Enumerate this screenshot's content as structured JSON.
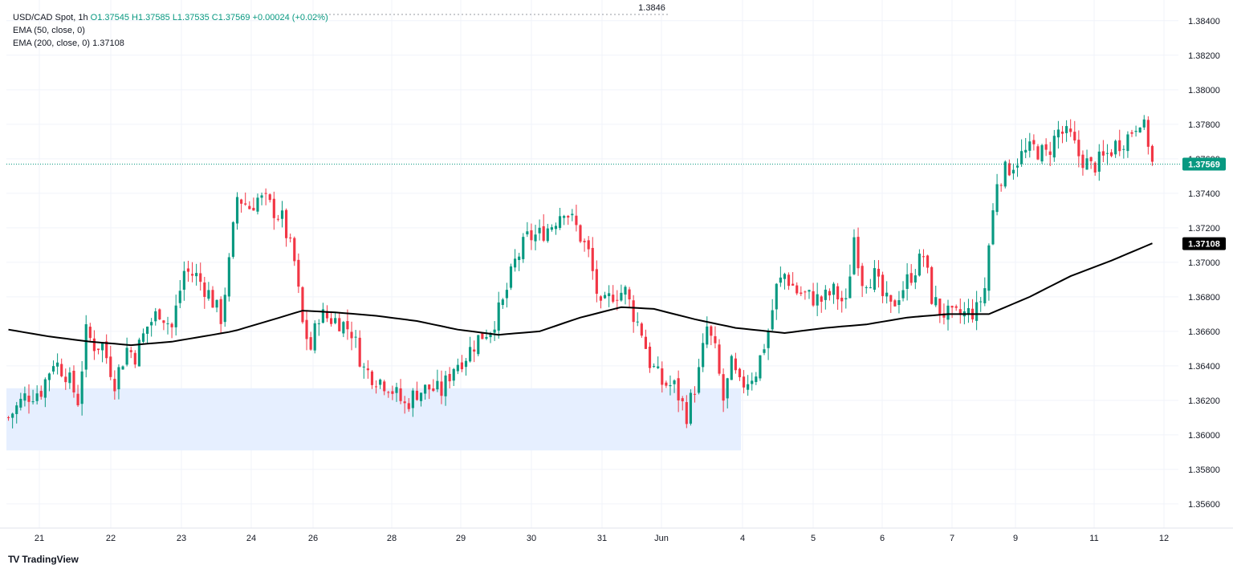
{
  "legend": {
    "symbol": "USD/CAD Spot",
    "interval": "1h",
    "open": "O1.37545",
    "high": "H1.37585",
    "low": "L1.37535",
    "close": "C1.37569",
    "change": "+0.00024 (+0.02%)",
    "ema50": "EMA (50, close, 0)",
    "ema200": "EMA (200, close, 0)",
    "ema200_value": "1.37108"
  },
  "overflow_label": "1.3846",
  "logo_text": "TradingView",
  "colors": {
    "up": "#089981",
    "down": "#f23645",
    "ema": "#000000",
    "zone": "#e6efff",
    "grid": "#f0f3fa"
  },
  "chart_data": {
    "type": "candlestick",
    "ylim": [
      1.3546,
      1.3852
    ],
    "y_ticks": [
      "1.35600",
      "1.35800",
      "1.36000",
      "1.36200",
      "1.36400",
      "1.36600",
      "1.36800",
      "1.37000",
      "1.37200",
      "1.37400",
      "1.37600",
      "1.37800",
      "1.38000",
      "1.38200",
      "1.38400"
    ],
    "x_ticks": [
      "21",
      "22",
      "23",
      "24",
      "26",
      "28",
      "29",
      "30",
      "31",
      "Jun",
      "4",
      "5",
      "6",
      "7",
      "9",
      "11",
      "12"
    ],
    "last_price": {
      "value": 1.37569,
      "label": "1.37569"
    },
    "ema200": {
      "value": 1.37108,
      "label": "1.37108",
      "points": [
        [
          0,
          1.3661
        ],
        [
          10,
          1.3657
        ],
        [
          20,
          1.3654
        ],
        [
          30,
          1.3652
        ],
        [
          40,
          1.3654
        ],
        [
          55,
          1.366
        ],
        [
          65,
          1.3667
        ],
        [
          72,
          1.3672
        ],
        [
          80,
          1.3671
        ],
        [
          90,
          1.3669
        ],
        [
          100,
          1.3666
        ],
        [
          110,
          1.3661
        ],
        [
          120,
          1.3658
        ],
        [
          130,
          1.366
        ],
        [
          140,
          1.3668
        ],
        [
          150,
          1.3674
        ],
        [
          158,
          1.3673
        ],
        [
          168,
          1.3667
        ],
        [
          178,
          1.3662
        ],
        [
          190,
          1.3659
        ],
        [
          200,
          1.3662
        ],
        [
          210,
          1.3664
        ],
        [
          220,
          1.3668
        ],
        [
          230,
          1.367
        ],
        [
          240,
          1.367
        ],
        [
          250,
          1.368
        ],
        [
          260,
          1.3692
        ],
        [
          270,
          1.3701
        ],
        [
          280,
          1.3711
        ]
      ]
    },
    "support_zone": {
      "from_index": 0,
      "to_index": 180,
      "low": 1.3591,
      "high": 1.3627
    },
    "bars": 281,
    "path": [
      [
        0,
        1.361
      ],
      [
        4,
        1.3622
      ],
      [
        8,
        1.3626
      ],
      [
        11,
        1.3643
      ],
      [
        14,
        1.3636
      ],
      [
        17,
        1.362
      ],
      [
        19,
        1.3659
      ],
      [
        21,
        1.3652
      ],
      [
        23,
        1.3652
      ],
      [
        26,
        1.3631
      ],
      [
        29,
        1.365
      ],
      [
        31,
        1.3646
      ],
      [
        34,
        1.3663
      ],
      [
        37,
        1.3672
      ],
      [
        40,
        1.3662
      ],
      [
        43,
        1.3695
      ],
      [
        46,
        1.3692
      ],
      [
        49,
        1.3682
      ],
      [
        52,
        1.3668
      ],
      [
        54,
        1.3699
      ],
      [
        56,
        1.3738
      ],
      [
        59,
        1.3732
      ],
      [
        61,
        1.3737
      ],
      [
        63,
        1.3735
      ],
      [
        67,
        1.3725
      ],
      [
        70,
        1.37
      ],
      [
        72,
        1.3664
      ],
      [
        74,
        1.365
      ],
      [
        76,
        1.367
      ],
      [
        78,
        1.3668
      ],
      [
        81,
        1.3666
      ],
      [
        84,
        1.366
      ],
      [
        87,
        1.3638
      ],
      [
        90,
        1.3633
      ],
      [
        93,
        1.3629
      ],
      [
        97,
        1.3617
      ],
      [
        100,
        1.3625
      ],
      [
        103,
        1.3627
      ],
      [
        106,
        1.3625
      ],
      [
        109,
        1.364
      ],
      [
        112,
        1.3646
      ],
      [
        115,
        1.3656
      ],
      [
        118,
        1.3662
      ],
      [
        121,
        1.3676
      ],
      [
        124,
        1.37
      ],
      [
        127,
        1.3714
      ],
      [
        130,
        1.3716
      ],
      [
        133,
        1.3722
      ],
      [
        136,
        1.3732
      ],
      [
        139,
        1.372
      ],
      [
        142,
        1.3705
      ],
      [
        145,
        1.3672
      ],
      [
        148,
        1.3682
      ],
      [
        151,
        1.3683
      ],
      [
        153,
        1.367
      ],
      [
        155,
        1.366
      ],
      [
        157,
        1.3642
      ],
      [
        160,
        1.363
      ],
      [
        163,
        1.3628
      ],
      [
        166,
        1.3612
      ],
      [
        169,
        1.3636
      ],
      [
        171,
        1.3662
      ],
      [
        173,
        1.3648
      ],
      [
        175,
        1.362
      ],
      [
        177,
        1.364
      ],
      [
        179,
        1.3628
      ],
      [
        181,
        1.3632
      ],
      [
        183,
        1.3637
      ],
      [
        186,
        1.366
      ],
      [
        188,
        1.3685
      ],
      [
        190,
        1.3693
      ],
      [
        193,
        1.3683
      ],
      [
        196,
        1.368
      ],
      [
        199,
        1.3678
      ],
      [
        202,
        1.3683
      ],
      [
        205,
        1.3675
      ],
      [
        207,
        1.3715
      ],
      [
        209,
        1.369
      ],
      [
        212,
        1.3692
      ],
      [
        214,
        1.368
      ],
      [
        216,
        1.3673
      ],
      [
        218,
        1.3682
      ],
      [
        221,
        1.3693
      ],
      [
        224,
        1.3704
      ],
      [
        226,
        1.368
      ],
      [
        228,
        1.3672
      ],
      [
        231,
        1.3668
      ],
      [
        234,
        1.367
      ],
      [
        237,
        1.3672
      ],
      [
        239,
        1.3685
      ],
      [
        240,
        1.371
      ],
      [
        242,
        1.3748
      ],
      [
        245,
        1.3755
      ],
      [
        248,
        1.3762
      ],
      [
        251,
        1.3766
      ],
      [
        254,
        1.3762
      ],
      [
        257,
        1.3776
      ],
      [
        260,
        1.3772
      ],
      [
        262,
        1.3762
      ],
      [
        265,
        1.3755
      ],
      [
        268,
        1.376
      ],
      [
        271,
        1.3768
      ],
      [
        274,
        1.3773
      ],
      [
        277,
        1.3784
      ],
      [
        279,
        1.377
      ],
      [
        280,
        1.3757
      ]
    ]
  }
}
